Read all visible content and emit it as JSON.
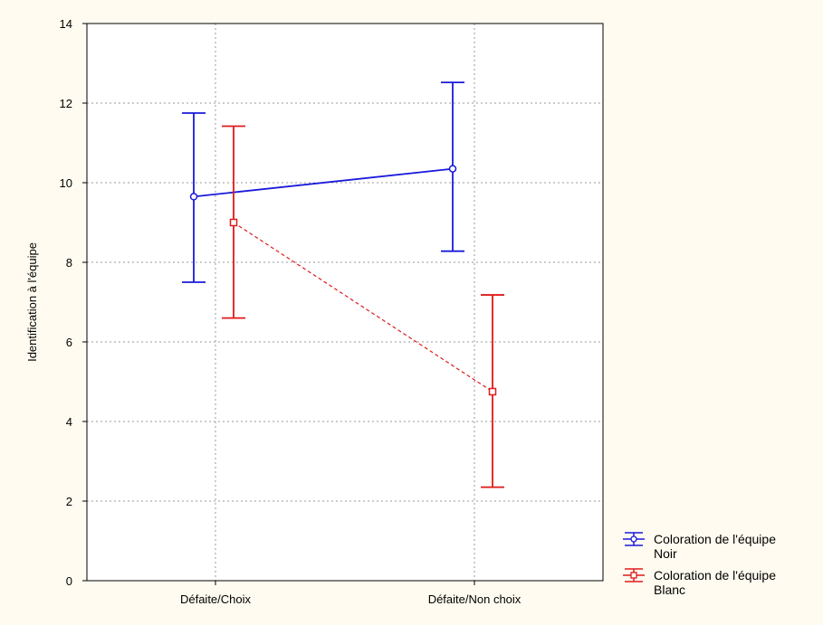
{
  "chart_data": {
    "type": "line",
    "title": "",
    "xlabel": "",
    "ylabel": "Identification à l'équipe",
    "categories": [
      "Défaite/Choix",
      "Défaite/Non choix"
    ],
    "ylim": [
      0,
      14
    ],
    "yticks": [
      0,
      2,
      4,
      6,
      8,
      10,
      12,
      14
    ],
    "grid": true,
    "error_bars": true,
    "legend_position": "bottom-right",
    "series": [
      {
        "name": "Coloration de l'équipe Noir",
        "legend_line1": "Coloration de l'équipe",
        "legend_line2": "Noir",
        "color": "#1a1adb",
        "marker": "circle",
        "line_style": "solid",
        "values": [
          9.65,
          10.35
        ],
        "lower": [
          7.5,
          8.28
        ],
        "upper": [
          11.75,
          12.52
        ]
      },
      {
        "name": "Coloration de l'équipe Blanc",
        "legend_line1": "Coloration de l'équipe",
        "legend_line2": "Blanc",
        "color": "#e01a1a",
        "marker": "square",
        "line_style": "dashed",
        "values": [
          9.0,
          4.75
        ],
        "lower": [
          6.6,
          2.35
        ],
        "upper": [
          11.42,
          7.18
        ]
      }
    ]
  }
}
